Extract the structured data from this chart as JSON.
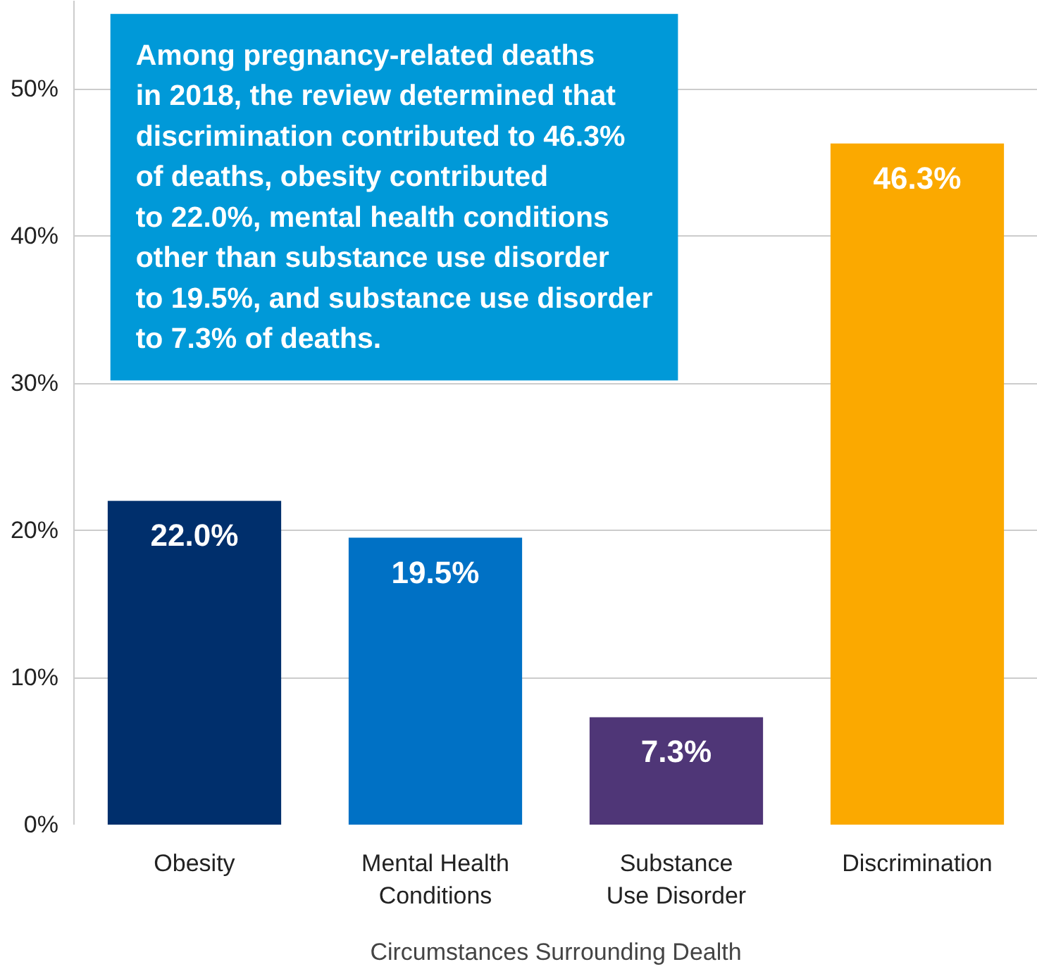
{
  "chart_data": {
    "type": "bar",
    "categories": [
      "Obesity",
      "Mental Health\nConditions",
      "Substance\nUse Disorder",
      "Discrimination"
    ],
    "values": [
      22.0,
      19.5,
      7.3,
      46.3
    ],
    "colors": [
      "#002f6c",
      "#0071c5",
      "#4f3677",
      "#fba900"
    ],
    "value_labels": [
      "22.0%",
      "19.5%",
      "7.3%",
      "46.3%"
    ],
    "xlabel": "Circumstances Surrounding Dealth",
    "ylim": [
      0,
      56
    ],
    "yticks": [
      {
        "value": 0,
        "label": "0%"
      },
      {
        "value": 10,
        "label": "10%"
      },
      {
        "value": 20,
        "label": "20%"
      },
      {
        "value": 30,
        "label": "30%"
      },
      {
        "value": 40,
        "label": "40%"
      },
      {
        "value": 50,
        "label": "50%"
      }
    ],
    "grid": "y",
    "annotations": [
      "Among pregnancy-related deaths\nin 2018, the review determined that\ndiscrimination contributed to 46.3%\nof deaths, obesity contributed\nto 22.0%, mental health conditions\nother than substance use disorder\nto 19.5%, and substance use disorder\nto 7.3% of deaths."
    ]
  }
}
